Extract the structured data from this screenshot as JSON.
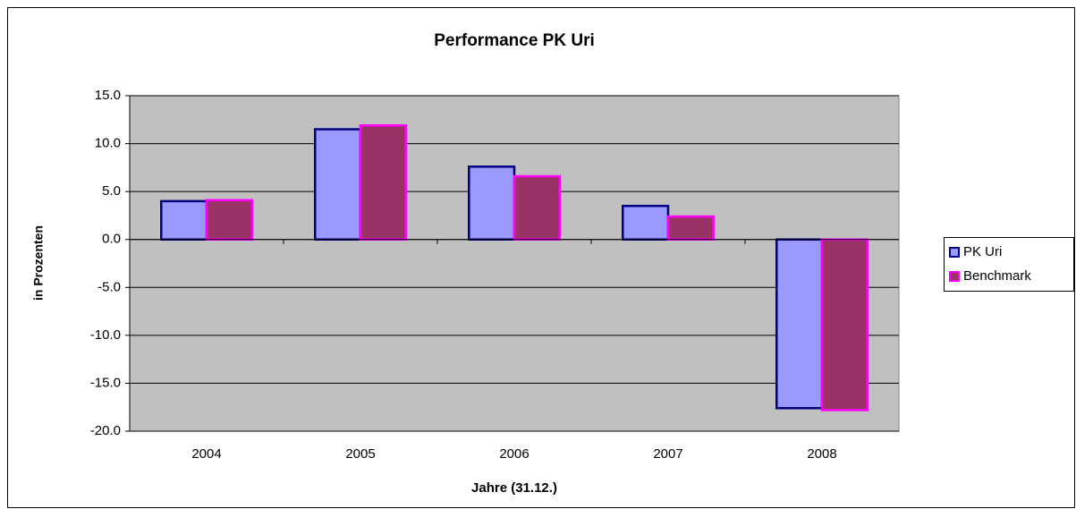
{
  "chart_data": {
    "type": "bar",
    "title": "Performance PK Uri",
    "x_label": "Jahre (31.12.)",
    "y_label": "in Prozenten",
    "categories": [
      "2004",
      "2005",
      "2006",
      "2007",
      "2008"
    ],
    "series": [
      {
        "name": "PK Uri",
        "color": "#9999ff",
        "edge_color": "#000080",
        "values": [
          4.0,
          11.5,
          7.6,
          3.5,
          -17.6
        ]
      },
      {
        "name": "Benchmark",
        "color": "#993366",
        "edge_color": "#ff00ff",
        "values": [
          4.1,
          11.9,
          6.6,
          2.4,
          -17.8
        ]
      }
    ],
    "ylim": [
      -20,
      15
    ],
    "yticks": [
      {
        "value": -20,
        "label": "-20.0"
      },
      {
        "value": -15,
        "label": "-15.0"
      },
      {
        "value": -10,
        "label": "-10.0"
      },
      {
        "value": -5,
        "label": "-5.0"
      },
      {
        "value": 0,
        "label": "0.0"
      },
      {
        "value": 5,
        "label": "5.0"
      },
      {
        "value": 10,
        "label": "10.0"
      },
      {
        "value": 15,
        "label": "15.0"
      }
    ],
    "grid": true,
    "plot_background": "#c0c0c0",
    "legend": "right"
  }
}
